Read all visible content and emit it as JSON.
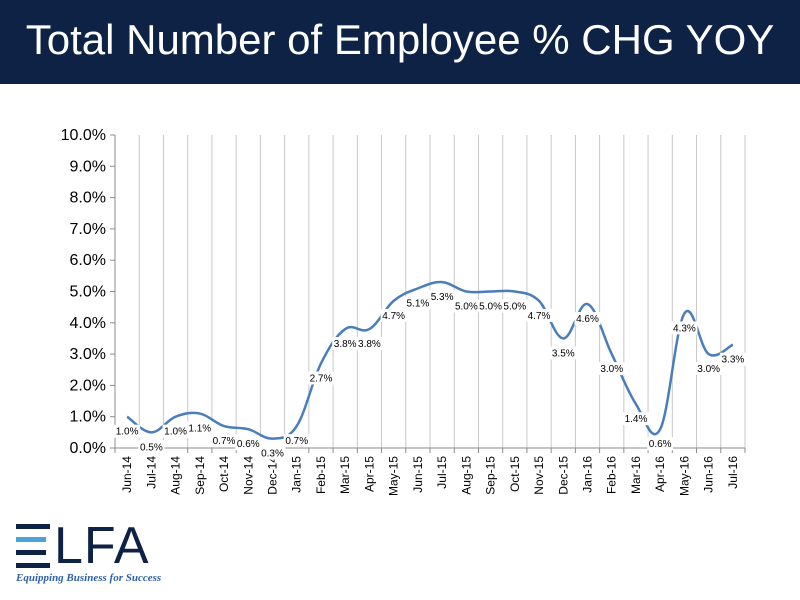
{
  "header": {
    "title": "Total Number of Employee % CHG YOY"
  },
  "logo": {
    "name": "ELFA",
    "tagline": "Equipping Business for Success",
    "colors": {
      "dark": "#0d2245",
      "accent": "#4aa3d9"
    }
  },
  "chart_data": {
    "type": "line",
    "title": "",
    "xlabel": "",
    "ylabel": "",
    "ylim": [
      0,
      10
    ],
    "yticks": [
      "0.0%",
      "1.0%",
      "2.0%",
      "3.0%",
      "4.0%",
      "5.0%",
      "6.0%",
      "7.0%",
      "8.0%",
      "9.0%",
      "10.0%"
    ],
    "grid": "vertical",
    "legend": "none",
    "line_color": "#4a7ebb",
    "categories": [
      "Jun-14",
      "Jul-14",
      "Aug-14",
      "Sep-14",
      "Oct-14",
      "Nov-14",
      "Dec-14",
      "Jan-15",
      "Feb-15",
      "Mar-15",
      "Apr-15",
      "May-15",
      "Jun-15",
      "Jul-15",
      "Aug-15",
      "Sep-15",
      "Oct-15",
      "Nov-15",
      "Dec-15",
      "Jan-16",
      "Feb-16",
      "Mar-16",
      "Apr-16",
      "May-16",
      "Jun-16",
      "Jul-16"
    ],
    "values": [
      1.0,
      0.5,
      1.0,
      1.1,
      0.7,
      0.6,
      0.3,
      0.7,
      2.7,
      3.8,
      3.8,
      4.7,
      5.1,
      5.3,
      5.0,
      5.0,
      5.0,
      4.7,
      3.5,
      4.6,
      3.0,
      1.4,
      0.6,
      4.3,
      3.0,
      3.3
    ],
    "data_labels": [
      "1.0%",
      "0.5%",
      "1.0%",
      "1.1%",
      "0.7%",
      "0.6%",
      "0.3%",
      "0.7%",
      "2.7%",
      "3.8%",
      "3.8%",
      "4.7%",
      "5.1%",
      "5.3%",
      "5.0%",
      "5.0%",
      "5.0%",
      "4.7%",
      "3.5%",
      "4.6%",
      "3.0%",
      "1.4%",
      "0.6%",
      "4.3%",
      "3.0%",
      "3.3%"
    ]
  }
}
